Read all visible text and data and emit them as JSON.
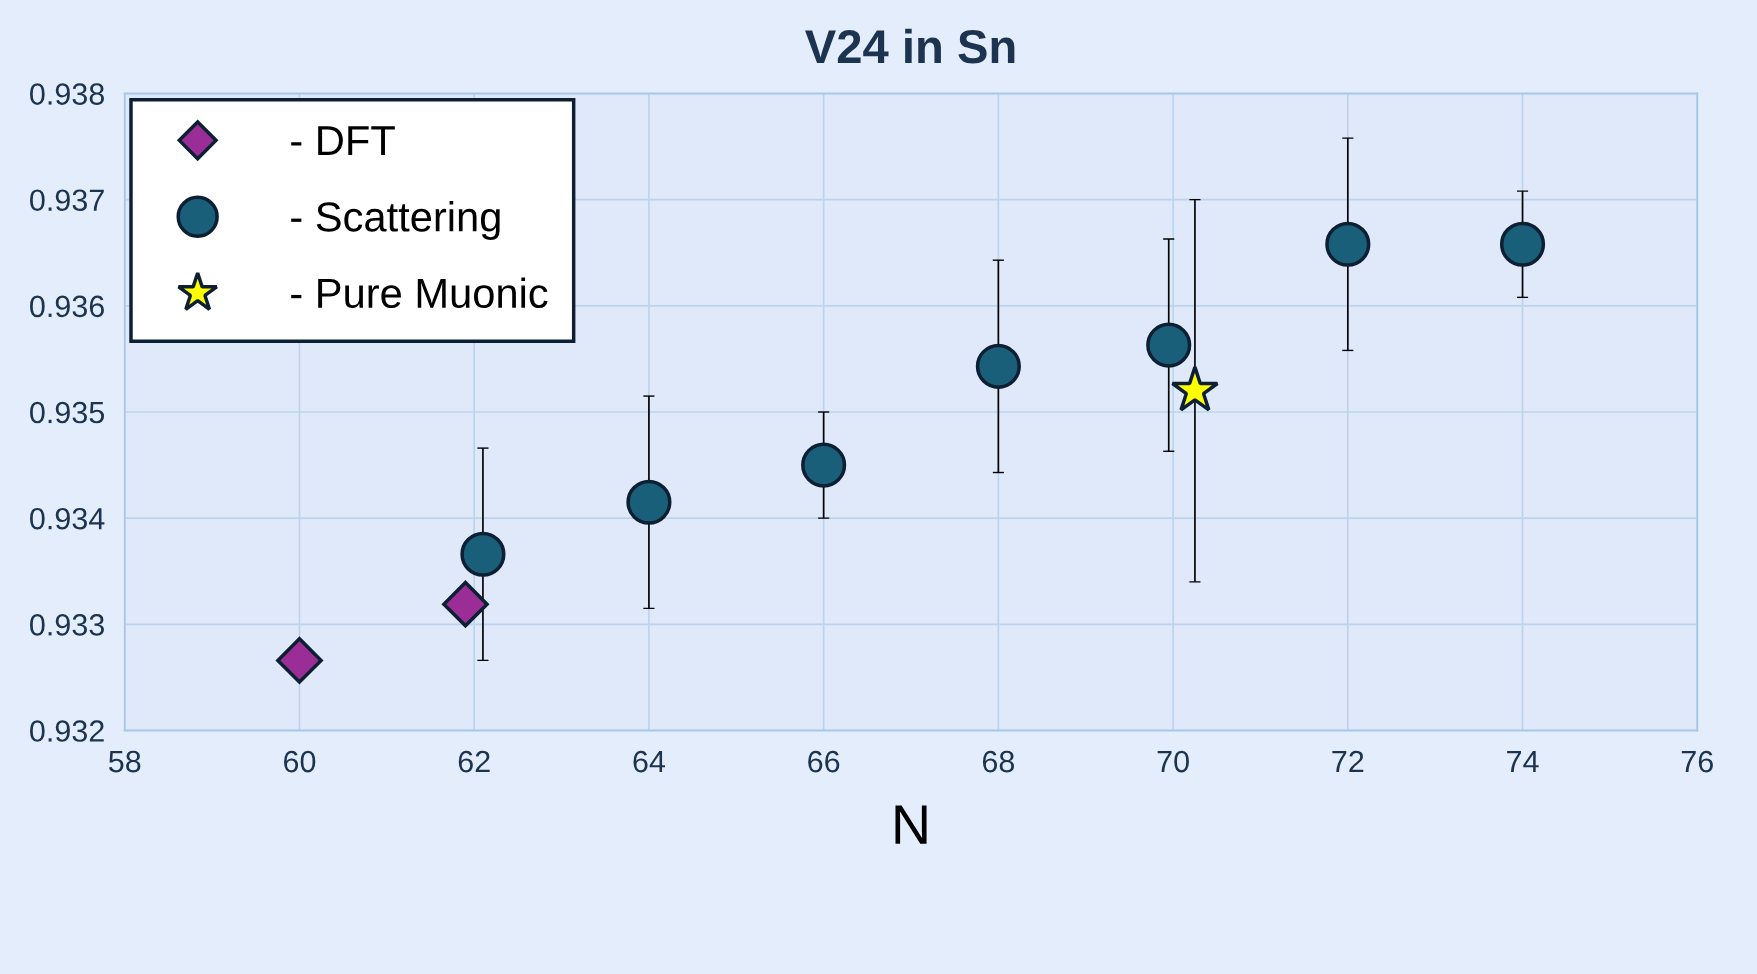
{
  "chart_data": {
    "type": "scatter",
    "title": "V24 in Sn",
    "xlabel": "N",
    "xlim": [
      58,
      76
    ],
    "xticks": [
      58,
      60,
      62,
      64,
      66,
      68,
      70,
      72,
      74,
      76
    ],
    "ylim": [
      0.932,
      0.938
    ],
    "yticks": [
      {
        "value": 0.932,
        "label": "0.932"
      },
      {
        "value": 0.933,
        "label": "0.933"
      },
      {
        "value": 0.934,
        "label": "0.934"
      },
      {
        "value": 0.935,
        "label": "0.935"
      },
      {
        "value": 0.936,
        "label": "0.936"
      },
      {
        "value": 0.937,
        "label": "0.937"
      },
      {
        "value": 0.938,
        "label": "0.938"
      }
    ],
    "grid": true,
    "legend": "top left",
    "series": [
      {
        "name": "- DFT",
        "color": "#9b2d96",
        "marker": "diamond",
        "x": [
          60,
          61.9
        ],
        "values": [
          0.93266,
          0.93319
        ]
      },
      {
        "name": "- Scattering",
        "color": "#1a5f7a",
        "marker": "circle",
        "x": [
          62.1,
          64,
          66,
          68,
          69.95,
          72,
          74
        ],
        "values": [
          0.93366,
          0.93415,
          0.9345,
          0.93543,
          0.93563,
          0.93658,
          0.93658
        ],
        "errors": [
          0.001,
          0.001,
          0.0005,
          0.001,
          0.001,
          0.001,
          0.0005
        ]
      },
      {
        "name": "- Pure Muonic",
        "color": "#ffff00",
        "marker": "star",
        "x": [
          70.25
        ],
        "values": [
          0.9352
        ],
        "errors": [
          0.0018
        ]
      }
    ]
  }
}
